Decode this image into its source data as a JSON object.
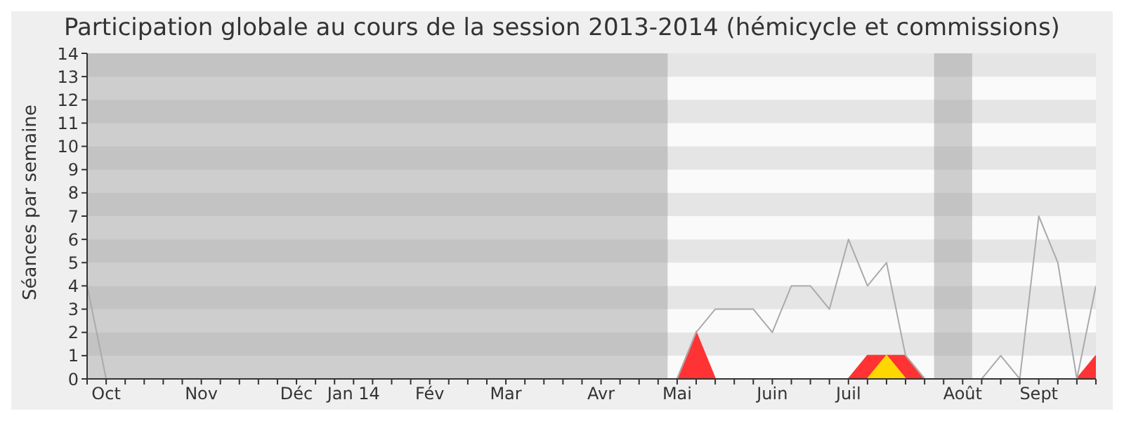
{
  "chart_data": {
    "type": "line",
    "title": "Participation globale au cours de la session 2013-2014 (hémicycle et commissions)",
    "ylabel": "Séances par semaine",
    "categories": [
      null,
      "Oct",
      null,
      null,
      null,
      null,
      "Nov",
      null,
      null,
      null,
      null,
      "Déc",
      null,
      null,
      "Jan 14",
      null,
      null,
      null,
      "Fév",
      null,
      null,
      null,
      "Mar",
      null,
      null,
      null,
      null,
      "Avr",
      null,
      null,
      null,
      "Mai",
      null,
      null,
      null,
      null,
      "Juin",
      null,
      null,
      null,
      "Juil",
      null,
      null,
      null,
      null,
      null,
      "Août",
      null,
      null,
      null,
      "Sept",
      null,
      null,
      null
    ],
    "series": [
      {
        "color": "#aaaaaa",
        "values": [
          4,
          0,
          0,
          0,
          0,
          0,
          0,
          0,
          0,
          0,
          0,
          0,
          0,
          0,
          0,
          0,
          0,
          0,
          0,
          0,
          0,
          0,
          0,
          0,
          0,
          0,
          0,
          0,
          0,
          0,
          0,
          0,
          2,
          3,
          3,
          3,
          2,
          4,
          4,
          3,
          6,
          4,
          5,
          1,
          0,
          0,
          0,
          0,
          1,
          0,
          7,
          5,
          0,
          4
        ]
      },
      {
        "type": "area",
        "color": "#ff3333",
        "values": [
          0,
          0,
          0,
          0,
          0,
          0,
          0,
          0,
          0,
          0,
          0,
          0,
          0,
          0,
          0,
          0,
          0,
          0,
          0,
          0,
          0,
          0,
          0,
          0,
          0,
          0,
          0,
          0,
          0,
          0,
          0,
          0,
          2,
          0,
          0,
          0,
          0,
          0,
          0,
          0,
          0,
          1,
          1,
          1,
          0,
          0,
          0,
          0,
          0,
          0,
          0,
          0,
          0,
          1
        ]
      },
      {
        "type": "area",
        "color": "#ffd700",
        "values": [
          0,
          0,
          0,
          0,
          0,
          0,
          0,
          0,
          0,
          0,
          0,
          0,
          0,
          0,
          0,
          0,
          0,
          0,
          0,
          0,
          0,
          0,
          0,
          0,
          0,
          0,
          0,
          0,
          0,
          0,
          0,
          0,
          0,
          0,
          0,
          0,
          0,
          0,
          0,
          0,
          0,
          0,
          1,
          0,
          0,
          0,
          0,
          0,
          0,
          0,
          0,
          0,
          0,
          0
        ]
      }
    ],
    "ylim": [
      0,
      14
    ],
    "yticks": [
      0,
      1,
      2,
      3,
      4,
      5,
      6,
      7,
      8,
      9,
      10,
      11,
      12,
      13,
      14
    ],
    "marker": "none"
  }
}
